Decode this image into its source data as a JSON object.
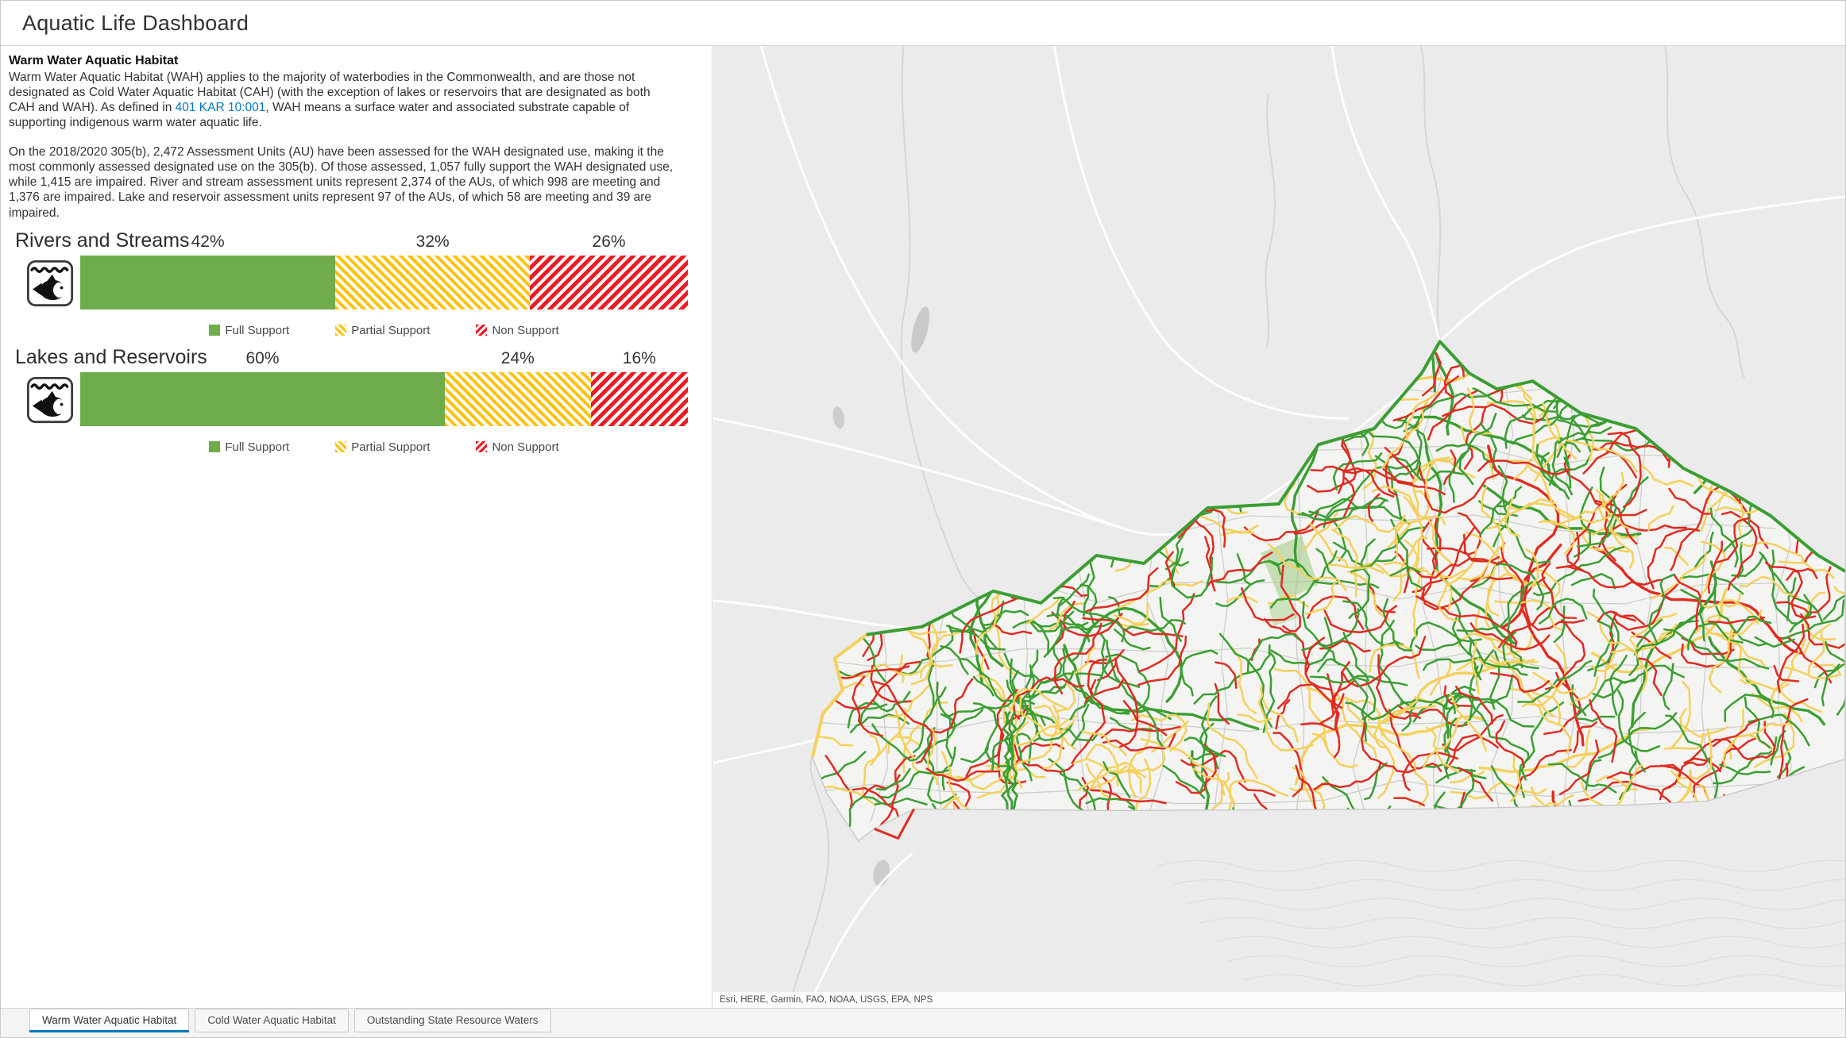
{
  "header": {
    "title": "Aquatic Life Dashboard"
  },
  "description": {
    "heading": "Warm Water Aquatic Habitat",
    "para1_before_link": "Warm Water Aquatic Habitat (WAH) applies to the majority of waterbodies in the Commonwealth, and are those not designated as Cold Water Aquatic Habitat (CAH) (with the exception of lakes or reservoirs that are designated as both CAH and WAH). As defined in ",
    "link_text": "401 KAR 10:001",
    "para1_after_link": ", WAH means a surface water and associated substrate capable of supporting indigenous warm water aquatic life.",
    "para2": "On the 2018/2020 305(b), 2,472 Assessment Units (AU) have been assessed for the WAH designated use, making it the most commonly assessed designated use on the 305(b). Of those assessed, 1,057 fully support the WAH designated use, while 1,415 are impaired. River and stream assessment units represent 2,374 of the AUs, of which 998 are meeting and 1,376 are impaired. Lake and reservoir assessment units represent 97 of the AUs, of which 58 are meeting and 39 are impaired."
  },
  "legend": {
    "full": "Full Support",
    "partial": "Partial Support",
    "non": "Non Support"
  },
  "colors": {
    "full_support": "#6FAC4B",
    "partial_support": "#FFC20E",
    "non_support": "#ED1C24",
    "link": "#0079C1",
    "tab_active_underline": "#0079C1",
    "map_stream_green": "#3B9E32",
    "map_stream_yellow": "#F5D05C",
    "map_stream_red": "#E02B20"
  },
  "chart_data": [
    {
      "type": "bar",
      "title": "Rivers and Streams",
      "orientation": "horizontal-stacked",
      "categories": [
        "Full Support",
        "Partial Support",
        "Non Support"
      ],
      "values": [
        42,
        32,
        26
      ],
      "labels": [
        "42%",
        "32%",
        "26%"
      ],
      "unit": "percent",
      "legend_position": "bottom-center"
    },
    {
      "type": "bar",
      "title": "Lakes and Reservoirs",
      "orientation": "horizontal-stacked",
      "categories": [
        "Full Support",
        "Partial Support",
        "Non Support"
      ],
      "values": [
        60,
        24,
        16
      ],
      "labels": [
        "60%",
        "24%",
        "16%"
      ],
      "unit": "percent",
      "legend_position": "bottom-center"
    }
  ],
  "map": {
    "attribution": "Esri, HERE, Garmin, FAO, NOAA, USGS, EPA, NPS"
  },
  "tabs": [
    {
      "label": "Warm Water Aquatic Habitat",
      "active": true
    },
    {
      "label": "Cold Water Aquatic Habitat",
      "active": false
    },
    {
      "label": "Outstanding State Resource Waters",
      "active": false
    }
  ]
}
